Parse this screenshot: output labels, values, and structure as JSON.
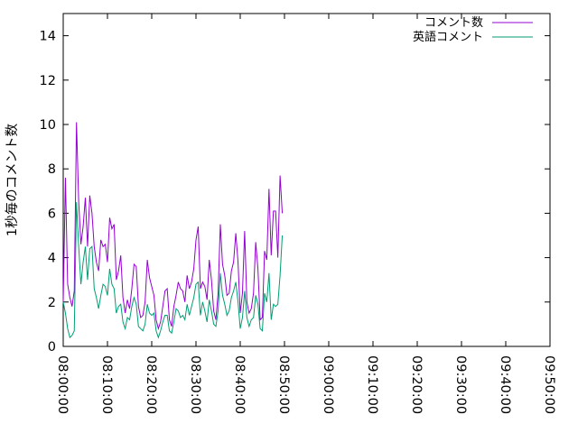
{
  "chart_data": {
    "type": "line",
    "title": "",
    "xlabel": "",
    "ylabel": "1秒毎のコメント数",
    "x_start": "08:00:00",
    "x_step_seconds": 30,
    "xlim": [
      "08:00:00",
      "09:50:00"
    ],
    "ylim": [
      0,
      15
    ],
    "grid": false,
    "legend_position": "top-right",
    "x_ticks": [
      "08:00:00",
      "08:10:00",
      "08:20:00",
      "08:30:00",
      "08:40:00",
      "08:50:00",
      "09:00:00",
      "09:10:00",
      "09:20:00",
      "09:30:00",
      "09:40:00",
      "09:50:00"
    ],
    "y_ticks": [
      "0",
      "2",
      "4",
      "6",
      "8",
      "10",
      "12",
      "14"
    ],
    "series": [
      {
        "name": "コメント数",
        "color": "#9400d3",
        "values": [
          2.0,
          7.6,
          2.8,
          2.2,
          1.8,
          2.5,
          10.1,
          6.5,
          4.6,
          5.4,
          6.7,
          4.5,
          6.8,
          6.0,
          4.5,
          3.8,
          3.4,
          4.8,
          4.5,
          4.6,
          3.8,
          5.8,
          5.3,
          5.5,
          3.0,
          3.4,
          4.1,
          2.2,
          1.5,
          2.1,
          1.7,
          2.6,
          3.7,
          3.6,
          1.8,
          1.3,
          1.4,
          2.0,
          3.9,
          3.1,
          2.7,
          2.3,
          1.2,
          0.8,
          1.1,
          1.8,
          2.5,
          2.6,
          1.2,
          0.9,
          1.8,
          2.3,
          2.9,
          2.6,
          2.5,
          2.0,
          3.2,
          2.6,
          2.9,
          3.5,
          4.8,
          5.4,
          2.6,
          2.9,
          2.7,
          2.1,
          3.9,
          3.0,
          1.6,
          1.2,
          2.4,
          5.5,
          3.7,
          3.2,
          2.3,
          2.4,
          3.4,
          3.8,
          5.1,
          3.8,
          1.5,
          2.4,
          5.2,
          2.0,
          1.5,
          1.7,
          2.4,
          4.7,
          3.5,
          1.2,
          1.3,
          4.3,
          3.9,
          7.1,
          4.1,
          6.1,
          6.1,
          4.0,
          7.7,
          6.0
        ]
      },
      {
        "name": "英語コメント",
        "color": "#009e73",
        "values": [
          2.0,
          1.5,
          0.8,
          0.4,
          0.5,
          0.7,
          6.5,
          4.5,
          2.8,
          3.8,
          4.5,
          3.0,
          4.4,
          4.5,
          2.6,
          2.2,
          1.7,
          2.3,
          2.8,
          2.7,
          2.3,
          3.5,
          2.8,
          2.6,
          1.5,
          1.8,
          1.9,
          1.1,
          0.8,
          1.3,
          1.2,
          1.8,
          2.2,
          1.9,
          0.9,
          0.8,
          0.7,
          1.0,
          1.9,
          1.5,
          1.4,
          1.5,
          0.7,
          0.4,
          0.7,
          1.1,
          1.4,
          1.4,
          0.7,
          0.6,
          1.1,
          1.7,
          1.6,
          1.3,
          1.4,
          1.2,
          1.9,
          1.4,
          1.8,
          2.2,
          2.8,
          2.9,
          1.4,
          2.0,
          1.6,
          1.1,
          2.1,
          1.6,
          1.0,
          0.9,
          1.6,
          3.3,
          2.3,
          1.9,
          1.4,
          1.6,
          2.2,
          2.5,
          2.9,
          2.0,
          0.8,
          1.3,
          2.5,
          1.3,
          0.9,
          1.2,
          1.3,
          2.3,
          1.9,
          0.8,
          0.7,
          2.4,
          2.0,
          3.3,
          1.2,
          1.9,
          1.8,
          1.9,
          3.2,
          5.0
        ]
      }
    ]
  }
}
